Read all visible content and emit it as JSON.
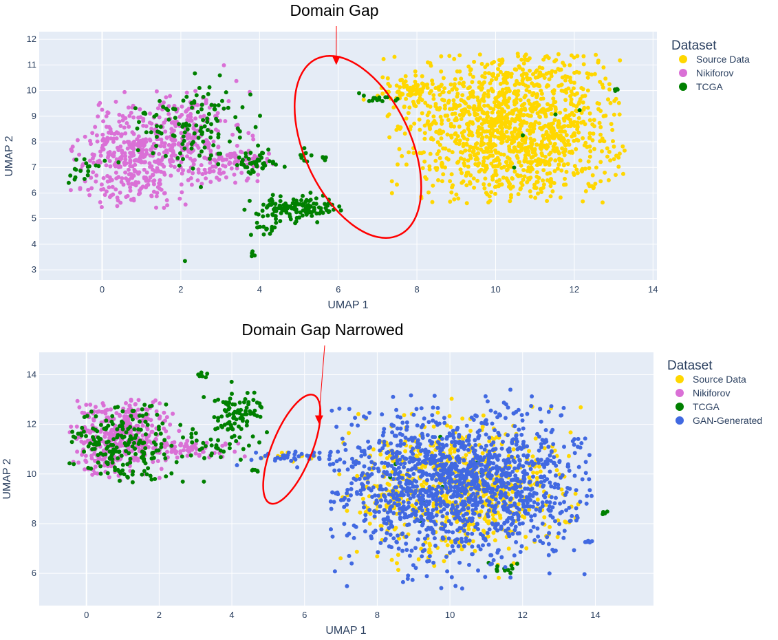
{
  "chart_data": [
    {
      "type": "scatter",
      "title": "",
      "xlabel": "UMAP 1",
      "ylabel": "UMAP 2",
      "xlim": [
        -1.6,
        14.1
      ],
      "ylim": [
        2.6,
        12.3
      ],
      "x_ticks": [
        0,
        2,
        4,
        6,
        8,
        10,
        12,
        14
      ],
      "y_ticks": [
        3,
        4,
        5,
        6,
        7,
        8,
        9,
        10,
        11,
        12
      ],
      "grid": true,
      "legend_title": "Dataset",
      "legend_position": "right",
      "annotation": {
        "text": "Domain Gap",
        "arrow_to": [
          5.95,
          11.0
        ]
      },
      "ellipse": {
        "center": [
          6.5,
          7.8
        ],
        "rx": 1.35,
        "ry": 3.8,
        "rotation_deg": -25,
        "color": "#ff0000"
      },
      "series": [
        {
          "name": "Source Data",
          "color": "#ffd700",
          "clusters": [
            {
              "cx": 10.5,
              "cy": 8.6,
              "sx": 1.35,
              "sy": 1.6,
              "n": 1300,
              "xmin": 7.1,
              "xmax": 13.3,
              "ymin": 5.6,
              "ymax": 11.5
            },
            {
              "cx": 7.9,
              "cy": 10.0,
              "sx": 0.4,
              "sy": 0.3,
              "n": 80
            }
          ]
        },
        {
          "name": "Nikiforov",
          "color": "#da70d6",
          "clusters": [
            {
              "cx": 0.9,
              "cy": 7.3,
              "sx": 0.75,
              "sy": 1.0,
              "n": 420,
              "xmin": -0.8,
              "xmax": 2.8,
              "ymin": 5.4,
              "ymax": 10.3
            },
            {
              "cx": 2.3,
              "cy": 8.4,
              "sx": 0.6,
              "sy": 0.8,
              "n": 160
            },
            {
              "cx": 3.3,
              "cy": 7.2,
              "sx": 0.45,
              "sy": 0.3,
              "n": 80
            }
          ]
        },
        {
          "name": "TCGA",
          "color": "#008000",
          "clusters": [
            {
              "cx": 2.2,
              "cy": 8.5,
              "sx": 0.7,
              "sy": 0.8,
              "n": 120
            },
            {
              "cx": -0.5,
              "cy": 6.9,
              "sx": 0.2,
              "sy": 0.3,
              "n": 18
            },
            {
              "cx": 3.9,
              "cy": 7.1,
              "sx": 0.25,
              "sy": 0.25,
              "n": 45
            },
            {
              "cx": 4.9,
              "cy": 5.4,
              "sx": 0.55,
              "sy": 0.25,
              "n": 130
            },
            {
              "cx": 4.2,
              "cy": 4.5,
              "sx": 0.2,
              "sy": 0.25,
              "n": 15
            },
            {
              "cx": 3.8,
              "cy": 3.6,
              "sx": 0.06,
              "sy": 0.1,
              "n": 4
            },
            {
              "cx": 5.1,
              "cy": 7.6,
              "sx": 0.15,
              "sy": 0.25,
              "n": 10
            },
            {
              "cx": 5.6,
              "cy": 7.4,
              "sx": 0.06,
              "sy": 0.06,
              "n": 5
            },
            {
              "cx": 7.1,
              "cy": 9.7,
              "sx": 0.35,
              "sy": 0.15,
              "n": 14
            },
            {
              "cx": 13.05,
              "cy": 10.05,
              "sx": 0.04,
              "sy": 0.03,
              "n": 4
            },
            {
              "cx": 2.1,
              "cy": 3.35,
              "sx": 0.01,
              "sy": 0.01,
              "n": 1
            },
            {
              "cx": 11.0,
              "cy": 8.6,
              "sx": 1.0,
              "sy": 1.0,
              "n": 4
            }
          ]
        }
      ]
    },
    {
      "type": "scatter",
      "title": "",
      "xlabel": "UMAP 1",
      "ylabel": "UMAP 2",
      "xlim": [
        -1.3,
        15.6
      ],
      "ylim": [
        4.7,
        14.9
      ],
      "x_ticks": [
        0,
        2,
        4,
        6,
        8,
        10,
        12,
        14
      ],
      "y_ticks": [
        6,
        8,
        10,
        12,
        14
      ],
      "grid": true,
      "legend_title": "Dataset",
      "legend_position": "right",
      "annotation": {
        "text": "Domain Gap Narrowed",
        "arrow_to": [
          6.4,
          12.0
        ]
      },
      "ellipse": {
        "center": [
          5.65,
          11.0
        ],
        "rx": 0.55,
        "ry": 2.35,
        "rotation_deg": 22,
        "color": "#ff0000"
      },
      "series": [
        {
          "name": "Source Data",
          "color": "#ffd700",
          "clusters": [
            {
              "cx": 10.3,
              "cy": 9.5,
              "sx": 1.6,
              "sy": 1.3,
              "n": 650,
              "xmin": 6.9,
              "xmax": 13.6,
              "ymin": 5.4,
              "ymax": 13.3
            },
            {
              "cx": 5.6,
              "cy": 10.7,
              "sx": 0.4,
              "sy": 0.15,
              "n": 12
            }
          ]
        },
        {
          "name": "Nikiforov",
          "color": "#da70d6",
          "clusters": [
            {
              "cx": 0.9,
              "cy": 11.6,
              "sx": 0.65,
              "sy": 0.8,
              "n": 380,
              "xmin": -0.5,
              "xmax": 2.6,
              "ymin": 9.4,
              "ymax": 13.0
            },
            {
              "cx": 2.9,
              "cy": 11.0,
              "sx": 0.7,
              "sy": 0.2,
              "n": 70
            }
          ]
        },
        {
          "name": "TCGA",
          "color": "#008000",
          "clusters": [
            {
              "cx": 1.0,
              "cy": 11.3,
              "sx": 0.8,
              "sy": 0.9,
              "n": 200,
              "xmin": -0.5,
              "xmax": 2.7,
              "ymin": 9.6,
              "ymax": 12.8
            },
            {
              "cx": 4.2,
              "cy": 12.4,
              "sx": 0.35,
              "sy": 0.5,
              "n": 80
            },
            {
              "cx": 3.5,
              "cy": 11.4,
              "sx": 0.5,
              "sy": 0.45,
              "n": 40
            },
            {
              "cx": 3.2,
              "cy": 14.0,
              "sx": 0.1,
              "sy": 0.1,
              "n": 6
            },
            {
              "cx": 4.6,
              "cy": 10.15,
              "sx": 0.06,
              "sy": 0.05,
              "n": 5
            },
            {
              "cx": 14.3,
              "cy": 8.45,
              "sx": 0.05,
              "sy": 0.04,
              "n": 5
            },
            {
              "cx": 3.2,
              "cy": 9.7,
              "sx": 0.01,
              "sy": 0.01,
              "n": 1
            },
            {
              "cx": 11.6,
              "cy": 6.2,
              "sx": 0.2,
              "sy": 0.1,
              "n": 12
            },
            {
              "cx": 10.0,
              "cy": 9.4,
              "sx": 1.2,
              "sy": 1.0,
              "n": 12
            }
          ]
        },
        {
          "name": "GAN-Generated",
          "color": "#4169e1",
          "clusters": [
            {
              "cx": 10.3,
              "cy": 9.6,
              "sx": 1.7,
              "sy": 1.5,
              "n": 1450,
              "xmin": 6.7,
              "xmax": 13.9,
              "ymin": 5.3,
              "ymax": 13.4
            },
            {
              "cx": 5.7,
              "cy": 10.7,
              "sx": 0.6,
              "sy": 0.15,
              "n": 40
            },
            {
              "cx": 13.8,
              "cy": 7.3,
              "sx": 0.06,
              "sy": 0.04,
              "n": 5
            }
          ]
        }
      ]
    }
  ]
}
